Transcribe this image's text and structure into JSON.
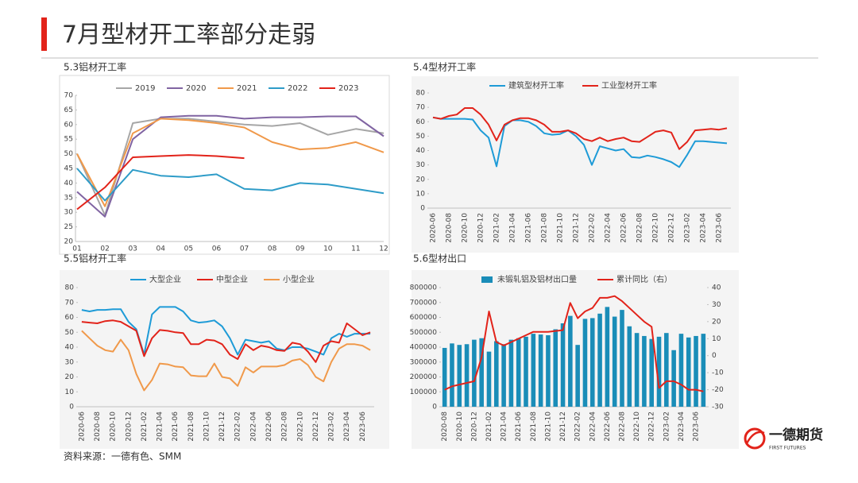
{
  "title": "7月型材开工率部分走弱",
  "source": "资料来源：一德有色、SMM",
  "logo": {
    "name": "一德期货",
    "sub": "FIRST FUTURES"
  },
  "chart_data": [
    {
      "type": "line",
      "title": "5.3铝材开工率",
      "categories": [
        "01",
        "02",
        "03",
        "04",
        "05",
        "06",
        "07",
        "08",
        "09",
        "10",
        "11",
        "12"
      ],
      "ylim": [
        20,
        70
      ],
      "yticks": [
        20,
        25,
        30,
        35,
        40,
        45,
        50,
        55,
        60,
        65,
        70
      ],
      "series": [
        {
          "name": "2019",
          "color": "#a6a6a6",
          "values": [
            50,
            29,
            60.5,
            62,
            62,
            61,
            60,
            59.5,
            60.5,
            56.5,
            58.5,
            57
          ]
        },
        {
          "name": "2020",
          "color": "#8064a2",
          "values": [
            37,
            28.5,
            55,
            62.5,
            63,
            63,
            62,
            62.5,
            62.5,
            62.8,
            62.8,
            56
          ]
        },
        {
          "name": "2021",
          "color": "#f0994a",
          "values": [
            50,
            32,
            57,
            62,
            61.5,
            60.5,
            59,
            54,
            51.5,
            52,
            54,
            50.5
          ]
        },
        {
          "name": "2022",
          "color": "#2e9cc8",
          "values": [
            45,
            34,
            44.5,
            42.5,
            42,
            43,
            38,
            37.5,
            40,
            39.5,
            38,
            36.5
          ]
        },
        {
          "name": "2023",
          "color": "#e2231a",
          "values": [
            31,
            38.5,
            48.8,
            49.2,
            49.6,
            49.2,
            48.5,
            null,
            null,
            null,
            null,
            null
          ]
        }
      ]
    },
    {
      "type": "line",
      "title": "5.4型材开工率",
      "categories": [
        "2020-06",
        null,
        "2020-08",
        null,
        "2020-10",
        null,
        "2020-12",
        null,
        "2021-02",
        null,
        "2021-04",
        null,
        "2021-06",
        null,
        "2021-08",
        null,
        "2021-10",
        null,
        "2021-12",
        null,
        "2022-02",
        null,
        "2022-04",
        null,
        "2022-06",
        null,
        "2022-08",
        null,
        "2022-10",
        null,
        "2022-12",
        null,
        "2023-02",
        null,
        "2023-04",
        null,
        "2023-06",
        null
      ],
      "ylim": [
        0,
        80
      ],
      "yticks": [
        0,
        10,
        20,
        30,
        40,
        50,
        60,
        70,
        80
      ],
      "series": [
        {
          "name": "建筑型材开工率",
          "color": "#1e9bd7",
          "values": [
            63,
            62,
            62,
            62,
            62,
            61.5,
            54,
            49,
            29,
            57,
            61,
            61,
            60,
            57,
            52,
            51,
            51.5,
            54,
            50,
            44,
            30,
            43,
            41.5,
            40,
            41,
            35.5,
            35,
            36.5,
            35.5,
            34,
            32,
            28.5,
            37,
            46.5,
            46.5,
            46,
            45.5,
            45
          ]
        },
        {
          "name": "工业型材开工率",
          "color": "#e2231a",
          "values": [
            63,
            62,
            64,
            65,
            69.5,
            69.5,
            65,
            58,
            47,
            58,
            61,
            62.5,
            62.5,
            61,
            58,
            53,
            53,
            54,
            52,
            48,
            46.5,
            49,
            46.5,
            48,
            49,
            46.5,
            46,
            49.5,
            53,
            54,
            52.5,
            41,
            46,
            54,
            54.5,
            55,
            54.5,
            55.5
          ]
        }
      ]
    },
    {
      "type": "line",
      "title": "5.5铝材开工率",
      "categories": [
        "2020-06",
        null,
        "2020-08",
        null,
        "2020-10",
        null,
        "2020-12",
        null,
        "2021-02",
        null,
        "2021-04",
        null,
        "2021-06",
        null,
        "2021-08",
        null,
        "2021-10",
        null,
        "2021-12",
        null,
        "2022-02",
        null,
        "2022-04",
        null,
        "2022-06",
        null,
        "2022-08",
        null,
        "2022-10",
        null,
        "2022-12",
        null,
        "2023-02",
        null,
        "2023-04",
        null,
        "2023-06",
        null
      ],
      "ylim": [
        0,
        80
      ],
      "yticks": [
        0,
        10,
        20,
        30,
        40,
        50,
        60,
        70,
        80
      ],
      "series": [
        {
          "name": "大型企业",
          "color": "#1e9bd7",
          "values": [
            65,
            64,
            65,
            65,
            65.5,
            65.5,
            57,
            52,
            35,
            62,
            67,
            67,
            67,
            64,
            58,
            56.5,
            57,
            58,
            54,
            46,
            35,
            45,
            44,
            43,
            44,
            39,
            38,
            40,
            40,
            39,
            37,
            35,
            46,
            49,
            47,
            49,
            49,
            49
          ]
        },
        {
          "name": "中型企业",
          "color": "#e2231a",
          "values": [
            57,
            56.5,
            56,
            57.5,
            58,
            57,
            54,
            51,
            34,
            46,
            51.5,
            51,
            50,
            49.5,
            42,
            42,
            45,
            44.5,
            42,
            35,
            32,
            42,
            38,
            41,
            40,
            38,
            37.5,
            43,
            42,
            37,
            30,
            41,
            44,
            43,
            56,
            52,
            48,
            50
          ]
        },
        {
          "name": "小型企业",
          "color": "#f0994a",
          "values": [
            51,
            46,
            41,
            38,
            37,
            45,
            38,
            22,
            11,
            18,
            29,
            28.5,
            27,
            26.5,
            21,
            20.5,
            20.5,
            29,
            20,
            19,
            14,
            26.5,
            23,
            27,
            27,
            27,
            28,
            31,
            32,
            28,
            20,
            17,
            30,
            39,
            42,
            42,
            41,
            38
          ]
        }
      ]
    },
    {
      "type": "bar",
      "title": "5.6型材出口",
      "categories": [
        "2020-08",
        null,
        "2020-10",
        null,
        "2020-12",
        null,
        "2021-02",
        null,
        "2021-04",
        null,
        "2021-06",
        null,
        "2021-08",
        null,
        "2021-10",
        null,
        "2021-12",
        null,
        "2022-02",
        null,
        "2022-04",
        null,
        "2022-06",
        null,
        "2022-08",
        null,
        "2022-10",
        null,
        "2022-12",
        null,
        "2023-02",
        null,
        "2023-04",
        null,
        "2023-06",
        null
      ],
      "ylim": [
        0,
        800000
      ],
      "yticks": [
        0,
        100000,
        200000,
        300000,
        400000,
        500000,
        600000,
        700000,
        800000
      ],
      "y2lim": [
        -30,
        40
      ],
      "y2ticks": [
        -30,
        -20,
        -10,
        0,
        10,
        20,
        30,
        40
      ],
      "series": [
        {
          "name": "未锻轧铝及铝材出口量",
          "color": "#1a8db8",
          "values": [
            395000,
            425000,
            415000,
            420000,
            450000,
            460000,
            370000,
            440000,
            420000,
            450000,
            460000,
            470000,
            490000,
            485000,
            480000,
            520000,
            560000,
            610000,
            415000,
            590000,
            595000,
            625000,
            670000,
            605000,
            650000,
            540000,
            495000,
            475000,
            455000,
            470000,
            495000,
            380000,
            490000,
            465000,
            475000,
            490000
          ]
        },
        {
          "name": "累计同比（右）",
          "color": "#e2231a",
          "axis": "y2",
          "values": [
            -20,
            -18,
            -17,
            -16,
            -15,
            -1,
            26,
            8,
            6,
            8,
            10,
            12,
            14,
            14,
            14,
            14.5,
            15,
            31,
            22,
            26,
            28,
            34,
            34,
            35,
            32,
            28,
            24,
            20,
            17,
            -19,
            -15,
            -15,
            -17,
            -20,
            -20,
            -21
          ]
        }
      ]
    }
  ]
}
